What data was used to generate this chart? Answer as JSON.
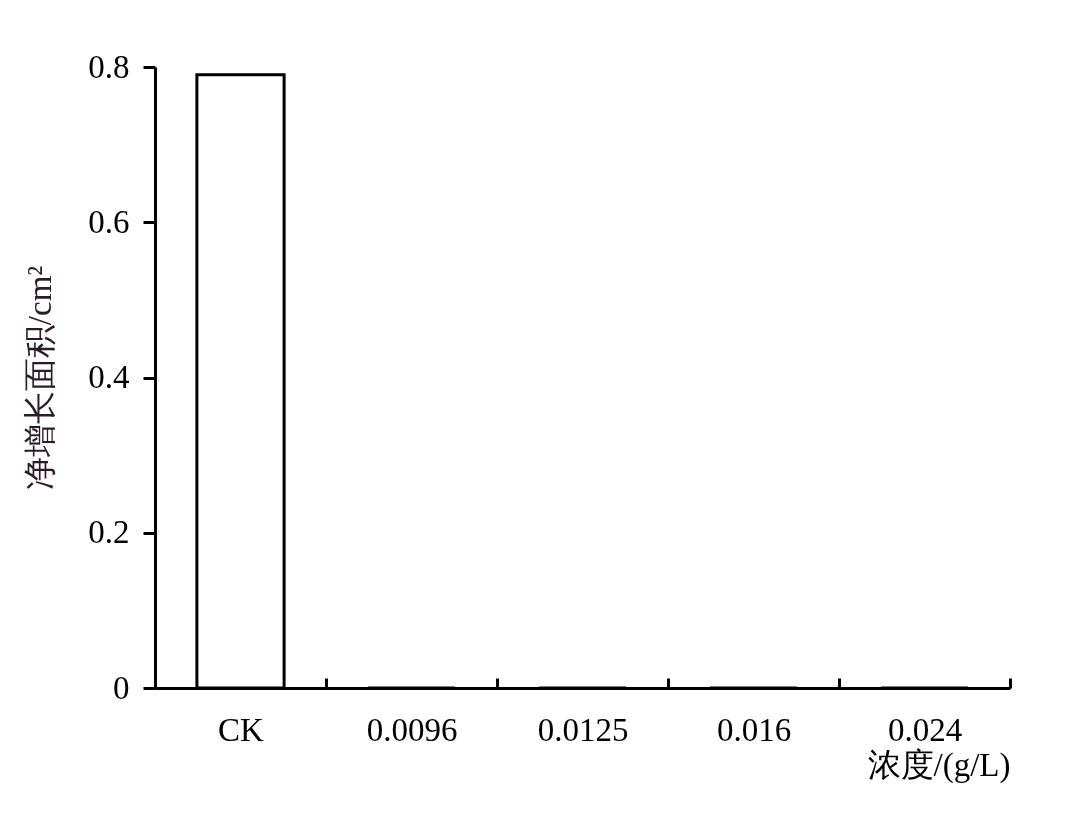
{
  "chart_data": {
    "type": "bar",
    "xlabel": "浓度/(g/L)",
    "ylabel": "净增长面积/cm²",
    "categories": [
      "CK",
      "0.0096",
      "0.0125",
      "0.016",
      "0.024"
    ],
    "values": [
      0.79,
      0,
      0,
      0,
      0
    ],
    "color": "#ffffff",
    "ylim": [
      0,
      0.8
    ],
    "yticks": [
      0,
      0.2,
      0.4,
      0.6,
      0.8
    ],
    "grid": false
  }
}
